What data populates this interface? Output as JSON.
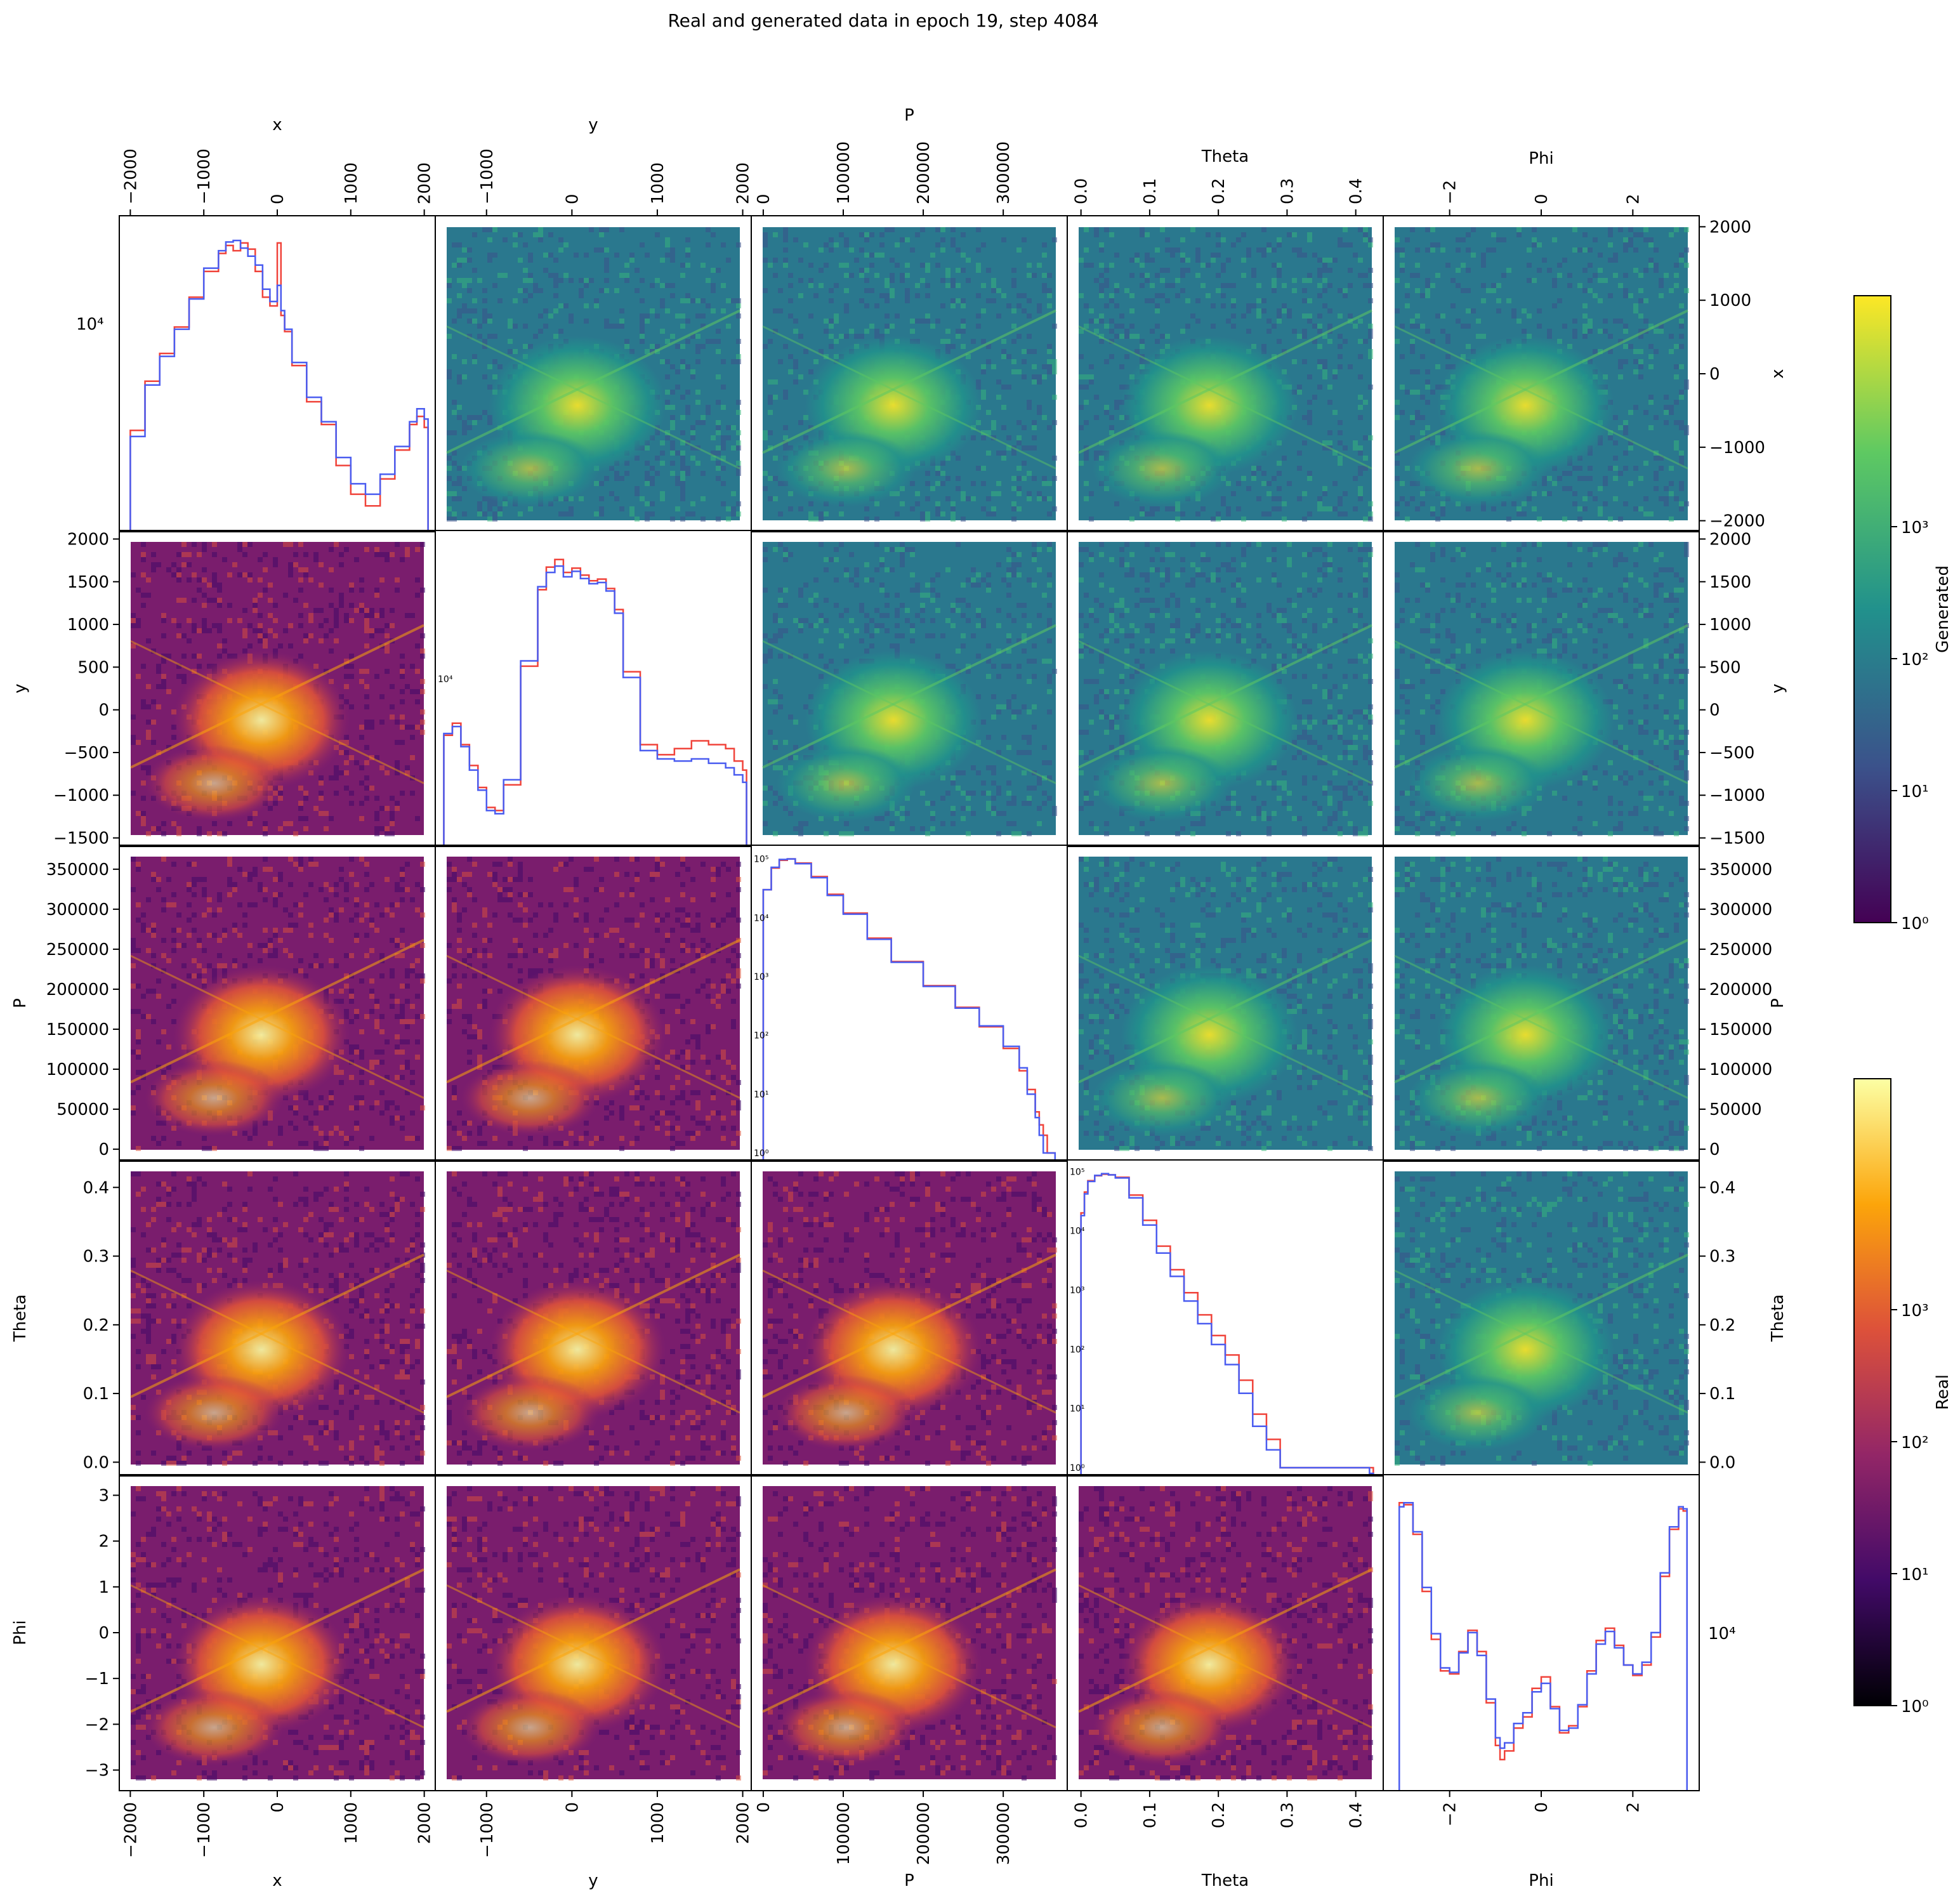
{
  "title": "Real and generated data in epoch 19, step 4084",
  "colors": {
    "real_line": "#f0433a",
    "generated_line": "#4a5cf0",
    "viridis": [
      "#440154",
      "#3b528b",
      "#21918c",
      "#5ec962",
      "#fde725"
    ],
    "inferno": [
      "#000004",
      "#420a68",
      "#932667",
      "#dd513a",
      "#fca50a",
      "#fcffa4"
    ]
  },
  "chart_data": {
    "type": "heatmap",
    "description_layout": "corner-pair-grid",
    "variables": [
      {
        "name": "x",
        "label": "x",
        "lim": [
          -2150,
          2150
        ],
        "ticks": [
          -2000,
          -1000,
          0,
          1000,
          2000
        ],
        "tick_labels": [
          "−2000",
          "−1000",
          "0",
          "1000",
          "2000"
        ]
      },
      {
        "name": "y",
        "label": "y",
        "lim": [
          -1600,
          2100
        ],
        "ticks": [
          -1000,
          0,
          1000,
          2000
        ],
        "tick_labels": [
          "−1000",
          "0",
          "1000",
          "2000"
        ],
        "right_ticks": [
          -1500,
          -1000,
          -500,
          0,
          500,
          1000,
          1500,
          2000
        ],
        "right_tick_labels": [
          "−1500",
          "−1000",
          "−500",
          "0",
          "500",
          "1000",
          "1500",
          "2000"
        ]
      },
      {
        "name": "P",
        "label": "P",
        "lim": [
          -15000,
          380000
        ],
        "ticks": [
          0,
          100000,
          200000,
          300000
        ],
        "tick_labels": [
          "0",
          "100000",
          "200000",
          "300000"
        ],
        "right_ticks": [
          0,
          50000,
          100000,
          150000,
          200000,
          250000,
          300000,
          350000
        ],
        "right_tick_labels": [
          "0",
          "50000",
          "100000",
          "150000",
          "200000",
          "250000",
          "300000",
          "350000"
        ]
      },
      {
        "name": "Theta",
        "label": "Theta",
        "lim": [
          -0.02,
          0.44
        ],
        "ticks": [
          0,
          0.1,
          0.2,
          0.3,
          0.4
        ],
        "tick_labels": [
          "0.0",
          "0.1",
          "0.2",
          "0.3",
          "0.4"
        ]
      },
      {
        "name": "Phi",
        "label": "Phi",
        "lim": [
          -3.45,
          3.45
        ],
        "ticks": [
          -3,
          -2,
          -1,
          0,
          1,
          2,
          3
        ],
        "tick_labels": [
          "−3",
          "−2",
          "−1",
          "0",
          "1",
          "2",
          "3"
        ],
        "top_ticks": [
          -2,
          0,
          2
        ],
        "top_tick_labels": [
          "−2",
          "0",
          "2"
        ]
      }
    ],
    "upper_triangle": "Generated",
    "lower_triangle": "Real",
    "diagonal": {
      "series": [
        {
          "name": "Real",
          "color": "#f0433a"
        },
        {
          "name": "Generated",
          "color": "#4a5cf0"
        }
      ],
      "x_hist": {
        "label": "10⁴",
        "x": [
          -2000,
          -1800,
          -1600,
          -1400,
          -1200,
          -1000,
          -800,
          -700,
          -600,
          -500,
          -400,
          -300,
          -200,
          -100,
          0,
          50,
          100,
          200,
          400,
          600,
          800,
          1000,
          1200,
          1400,
          1600,
          1800,
          1900,
          2000
        ],
        "real": [
          3500,
          5600,
          7300,
          9400,
          12500,
          16000,
          19000,
          20500,
          19500,
          21000,
          19800,
          16000,
          12500,
          11500,
          21000,
          10500,
          9000,
          6500,
          4600,
          3700,
          2500,
          1900,
          1700,
          2200,
          2900,
          3700,
          4000,
          3600
        ],
        "generated": [
          3300,
          5400,
          7100,
          9200,
          12300,
          16500,
          19500,
          21200,
          21500,
          20000,
          18500,
          17000,
          13500,
          12000,
          14000,
          11000,
          9200,
          6700,
          4800,
          3800,
          2700,
          2100,
          1900,
          2300,
          3000,
          3800,
          4300,
          3900
        ]
      },
      "y_hist": {
        "label": "10⁴",
        "x": [
          -1500,
          -1400,
          -1300,
          -1200,
          -1100,
          -1000,
          -900,
          -800,
          -600,
          -400,
          -300,
          -200,
          -100,
          0,
          100,
          200,
          300,
          400,
          500,
          600,
          800,
          1000,
          1200,
          1400,
          1600,
          1800,
          1900,
          2000
        ],
        "real": [
          7500,
          8200,
          7000,
          6000,
          5100,
          4400,
          4300,
          5200,
          12500,
          22000,
          26000,
          27500,
          25000,
          25800,
          24500,
          23500,
          23800,
          22200,
          19000,
          12000,
          7000,
          6500,
          6800,
          7200,
          7000,
          6800,
          6200,
          5800
        ],
        "generated": [
          7600,
          8000,
          6900,
          5800,
          5000,
          4300,
          4200,
          5400,
          13000,
          22500,
          25000,
          26200,
          24200,
          25200,
          23900,
          23000,
          23200,
          21800,
          18500,
          11500,
          6700,
          6300,
          6200,
          6300,
          6100,
          5900,
          5600,
          5300
        ]
      },
      "P_hist": {
        "ylabel_ticks": [
          "10⁰",
          "10¹",
          "10²",
          "10³",
          "10⁴",
          "10⁵"
        ],
        "x": [
          0,
          10000,
          20000,
          30000,
          40000,
          60000,
          80000,
          100000,
          130000,
          160000,
          200000,
          240000,
          270000,
          300000,
          320000,
          330000,
          340000,
          345000,
          350000,
          355000,
          360000
        ],
        "real": [
          30000,
          70000,
          95000,
          100000,
          85000,
          50000,
          25000,
          12000,
          4500,
          1800,
          700,
          300,
          140,
          60,
          25,
          12,
          5,
          3,
          2,
          1,
          1
        ],
        "generated": [
          30000,
          72000,
          98000,
          100000,
          83000,
          48000,
          24000,
          11500,
          4300,
          1750,
          680,
          290,
          145,
          65,
          28,
          10,
          4,
          2,
          1,
          1,
          1
        ]
      },
      "Theta_hist": {
        "ylabel_ticks": [
          "10⁰",
          "10¹",
          "10²",
          "10³",
          "10⁴",
          "10⁵"
        ],
        "x": [
          0.0,
          0.005,
          0.01,
          0.02,
          0.03,
          0.04,
          0.05,
          0.07,
          0.09,
          0.11,
          0.13,
          0.15,
          0.17,
          0.19,
          0.21,
          0.23,
          0.25,
          0.27,
          0.29,
          0.42
        ],
        "real": [
          20000,
          45000,
          70000,
          85000,
          90000,
          88000,
          80000,
          40000,
          15000,
          5500,
          2200,
          900,
          380,
          170,
          80,
          30,
          8,
          3,
          1,
          1
        ],
        "generated": [
          18000,
          42000,
          68000,
          86000,
          92000,
          88000,
          78000,
          36000,
          12500,
          4200,
          1700,
          650,
          270,
          120,
          55,
          18,
          5,
          2,
          1,
          0
        ]
      },
      "Phi_hist": {
        "label": "10⁴",
        "x": [
          -3.1,
          -3.0,
          -2.8,
          -2.6,
          -2.4,
          -2.2,
          -2.0,
          -1.8,
          -1.6,
          -1.4,
          -1.2,
          -1.0,
          -0.9,
          -0.8,
          -0.6,
          -0.4,
          -0.2,
          0.0,
          0.2,
          0.4,
          0.6,
          0.8,
          1.0,
          1.2,
          1.4,
          1.6,
          1.8,
          2.0,
          2.2,
          2.4,
          2.6,
          2.8,
          3.0,
          3.1
        ],
        "real": [
          32000,
          31500,
          25000,
          16000,
          11000,
          8600,
          8400,
          10000,
          11800,
          10000,
          6700,
          4800,
          4300,
          4600,
          5500,
          6000,
          7500,
          8200,
          6500,
          5300,
          5600,
          6500,
          8600,
          10900,
          12000,
          10500,
          9000,
          8300,
          9000,
          11200,
          18000,
          26000,
          30500,
          30000
        ],
        "generated": [
          31000,
          32000,
          25500,
          16500,
          11500,
          8800,
          8500,
          9900,
          11600,
          9700,
          6900,
          5100,
          4700,
          4900,
          5700,
          6200,
          7300,
          7800,
          6400,
          5400,
          5500,
          6600,
          8400,
          10600,
          11700,
          10300,
          9000,
          8400,
          9200,
          11600,
          18500,
          26500,
          31000,
          30500
        ]
      }
    },
    "colorbars": [
      {
        "label": "Generated",
        "colormap": "viridis",
        "scale": "log",
        "ticks": [
          "10⁰",
          "10¹",
          "10²",
          "10³"
        ]
      },
      {
        "label": "Real",
        "colormap": "inferno",
        "scale": "log",
        "ticks": [
          "10⁰",
          "10¹",
          "10²",
          "10³"
        ]
      }
    ],
    "axis_labels": {
      "top": [
        "x",
        "y",
        "P",
        "Theta",
        "Phi"
      ],
      "bottom": [
        "x",
        "y",
        "P",
        "Theta",
        "Phi"
      ],
      "left": [
        "",
        "y",
        "P",
        "Theta",
        "Phi"
      ],
      "right": [
        "x",
        "y",
        "P",
        "Theta",
        ""
      ]
    }
  }
}
